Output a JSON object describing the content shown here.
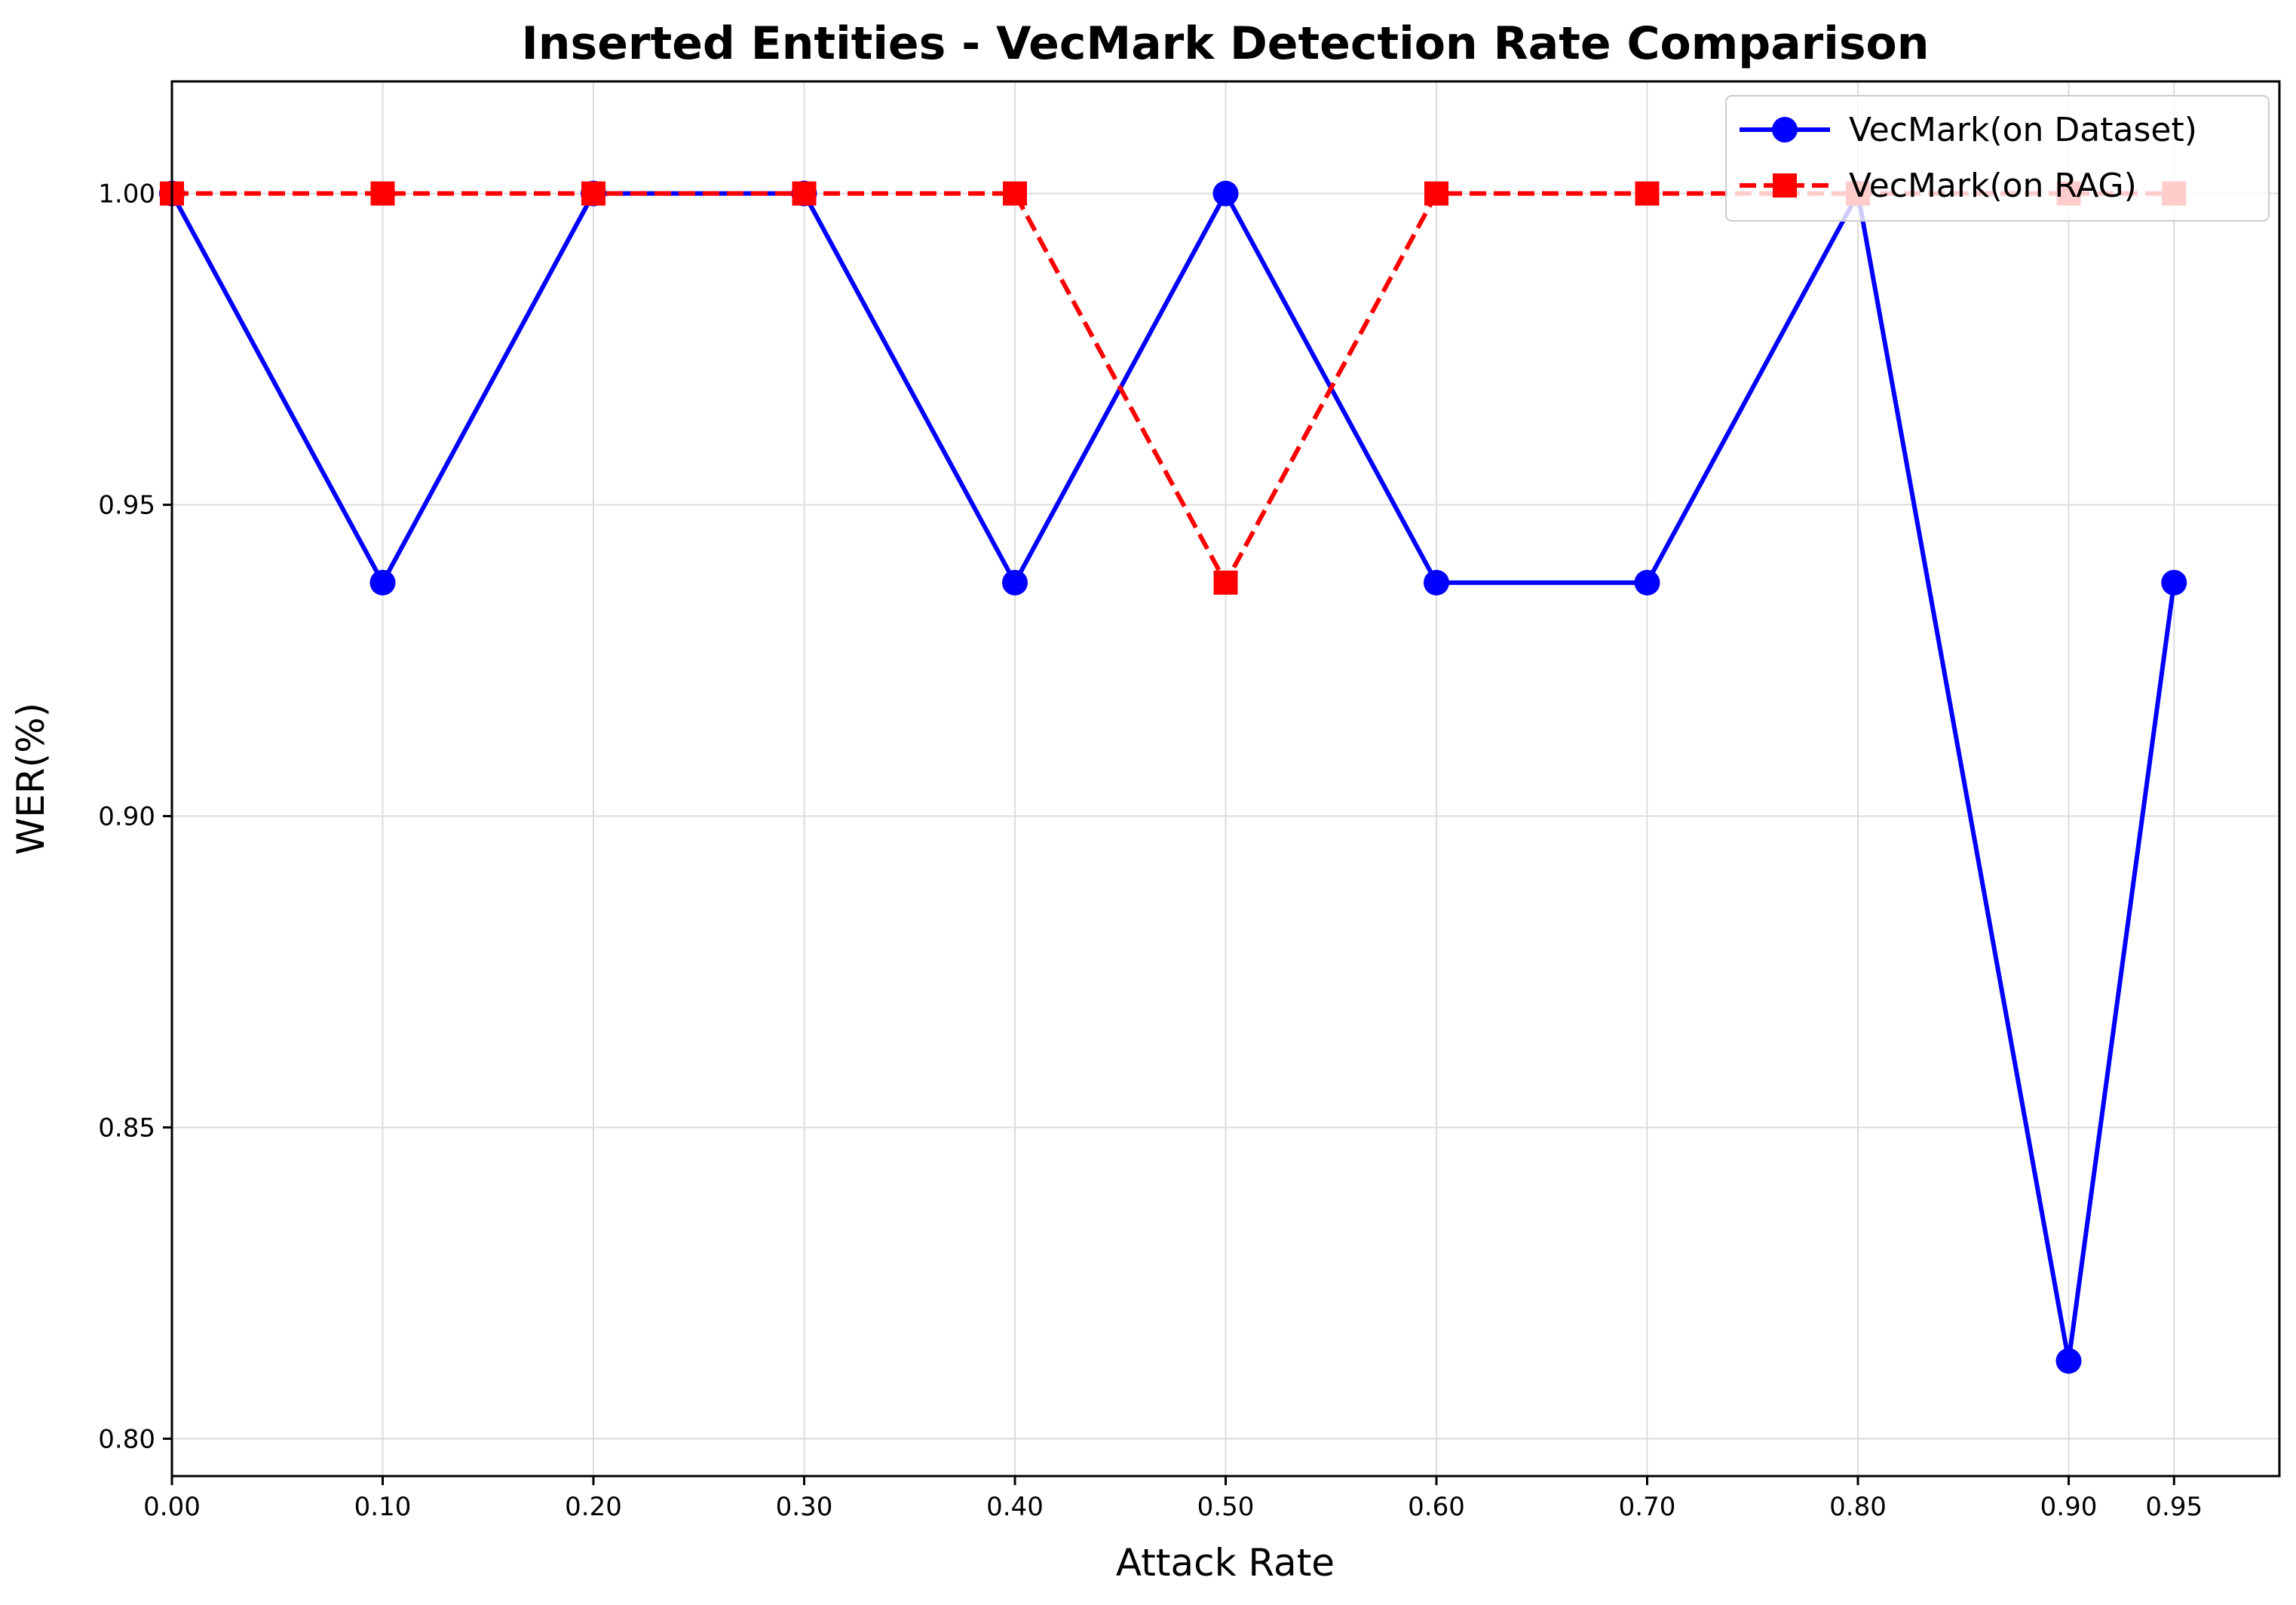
{
  "chart_data": {
    "type": "line",
    "title": "Inserted Entities - VecMark Detection Rate Comparison",
    "xlabel": "Attack Rate",
    "ylabel": "WER(%)",
    "x": [
      0.0,
      0.1,
      0.2,
      0.3,
      0.4,
      0.5,
      0.6,
      0.7,
      0.8,
      0.9,
      0.95
    ],
    "x_tick_labels": [
      "0.00",
      "0.10",
      "0.20",
      "0.30",
      "0.40",
      "0.50",
      "0.60",
      "0.70",
      "0.80",
      "0.90",
      "0.95"
    ],
    "y_ticks": [
      0.8,
      0.85,
      0.9,
      0.95,
      1.0
    ],
    "y_tick_labels": [
      "0.80",
      "0.85",
      "0.90",
      "0.95",
      "1.00"
    ],
    "xlim": [
      0.0,
      1.0
    ],
    "ylim": [
      0.794,
      1.018
    ],
    "grid": true,
    "legend_position": "top-right",
    "series": [
      {
        "name": "VecMark(on Dataset)",
        "color": "#0000ff",
        "line_style": "solid",
        "marker": "circle",
        "values": [
          1.0,
          0.9375,
          1.0,
          1.0,
          0.9375,
          1.0,
          0.9375,
          0.9375,
          1.0,
          0.8125,
          0.9375
        ]
      },
      {
        "name": "VecMark(on RAG)",
        "color": "#ff0000",
        "line_style": "dashed",
        "marker": "square",
        "values": [
          1.0,
          1.0,
          1.0,
          1.0,
          1.0,
          0.9375,
          1.0,
          1.0,
          1.0,
          1.0,
          1.0
        ]
      }
    ]
  }
}
